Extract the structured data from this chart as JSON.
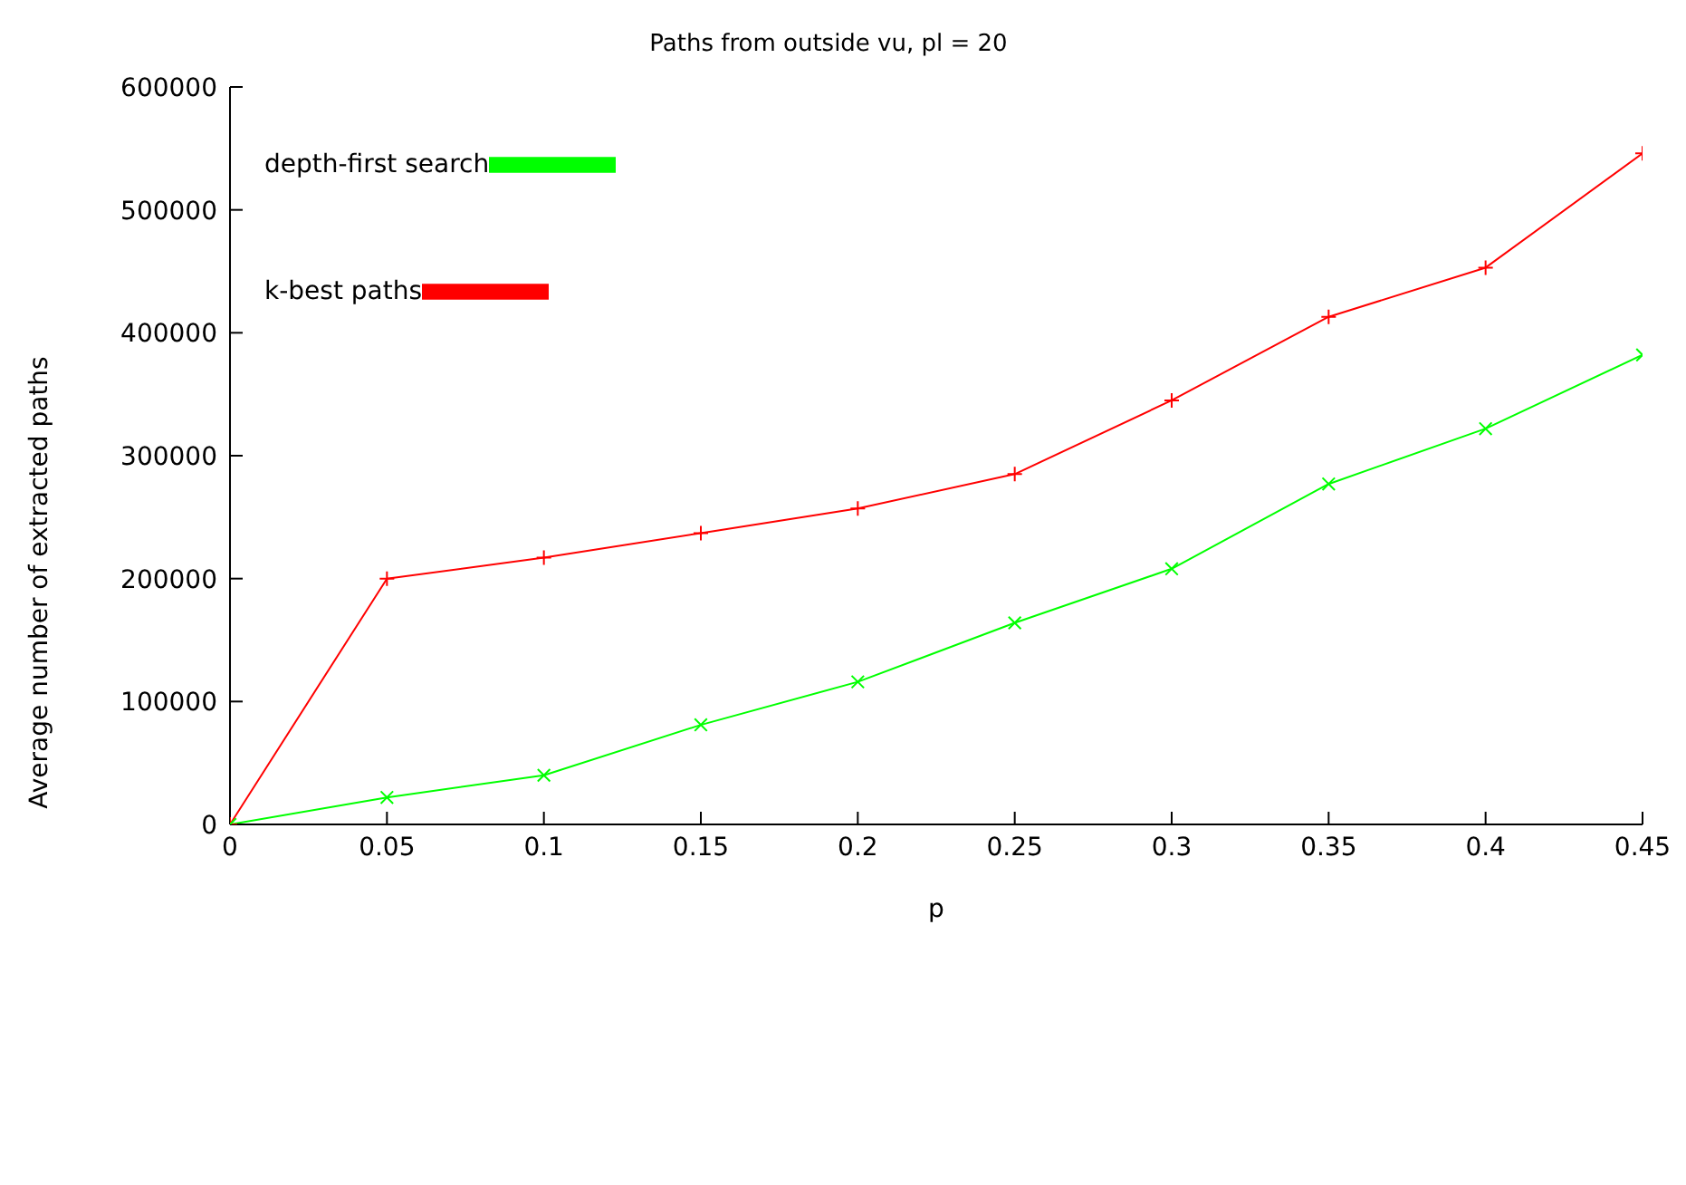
{
  "chart_data": {
    "type": "line",
    "title": "Paths from outside vu, pl = 20",
    "xlabel": "p",
    "ylabel": "Average number of extracted paths",
    "x": [
      0,
      0.05,
      0.1,
      0.15,
      0.2,
      0.25,
      0.3,
      0.35,
      0.4,
      0.45
    ],
    "series": [
      {
        "name": "k-best paths",
        "color": "#ff0000",
        "marker": "cross",
        "values": [
          0,
          200000,
          217000,
          237000,
          257000,
          285000,
          345000,
          413000,
          453000,
          546000
        ]
      },
      {
        "name": "depth-first search",
        "color": "#00ff00",
        "marker": "cross",
        "values": [
          0,
          22000,
          40000,
          81000,
          116000,
          164000,
          208000,
          277000,
          322000,
          382000
        ]
      }
    ],
    "xlim": [
      0,
      0.45
    ],
    "xticks": [
      0,
      0.05,
      0.1,
      0.15,
      0.2,
      0.25,
      0.3,
      0.35,
      0.4,
      0.45
    ],
    "ylim": [
      0,
      600000
    ],
    "yticks": [
      0,
      100000,
      200000,
      300000,
      400000,
      500000,
      600000
    ],
    "grid": false,
    "legend": "top left",
    "line_style": "solid"
  }
}
